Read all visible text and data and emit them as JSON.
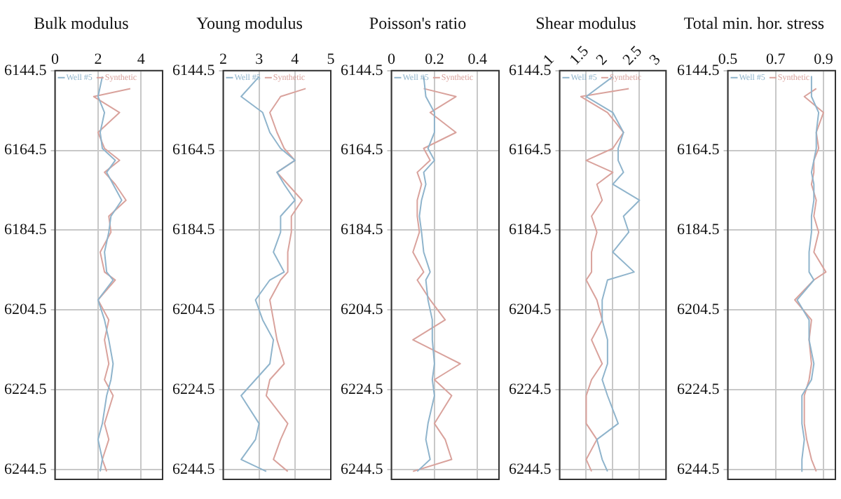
{
  "chart_data": [
    {
      "type": "line",
      "title": "Bulk modulus",
      "xlim": [
        0,
        5
      ],
      "xticks": [
        0,
        2,
        4
      ],
      "ylim": [
        6247,
        6144.5
      ],
      "yticks": [
        6144.5,
        6164.5,
        6184.5,
        6204.5,
        6224.5,
        6244.5
      ],
      "grid": true,
      "legend": "top",
      "series": [
        {
          "name": "Well #5",
          "color": "#8fb4cc",
          "x": [
            2.2,
            2.0,
            2.3,
            2.1,
            2.2,
            2.8,
            2.4,
            2.7,
            3.1,
            2.6,
            2.5,
            2.3,
            2.4,
            2.7,
            2.0,
            2.3,
            2.5,
            2.7,
            2.6,
            2.4,
            2.2,
            2.0,
            2.2,
            2.1
          ],
          "values": [
            6146,
            6151,
            6155,
            6160,
            6164,
            6167,
            6170,
            6173,
            6177,
            6181,
            6185,
            6190,
            6195,
            6197,
            6202,
            6207,
            6212,
            6218,
            6222,
            6226,
            6233,
            6237,
            6242,
            6245
          ]
        },
        {
          "name": "Synthetic",
          "color": "#d9a29c",
          "x": [
            3.5,
            1.8,
            3.0,
            2.0,
            2.3,
            3.0,
            2.3,
            2.8,
            3.3,
            2.5,
            2.6,
            2.1,
            2.3,
            2.8,
            2.0,
            2.5,
            2.3,
            2.5,
            2.3,
            2.7,
            2.3,
            2.5,
            2.2,
            2.4
          ],
          "values": [
            6149,
            6151,
            6155,
            6160,
            6164,
            6167,
            6170,
            6173,
            6177,
            6181,
            6185,
            6190,
            6195,
            6197,
            6202,
            6207,
            6212,
            6218,
            6222,
            6226,
            6233,
            6237,
            6242,
            6245
          ]
        }
      ]
    },
    {
      "type": "line",
      "title": "Young modulus",
      "xlim": [
        2,
        5
      ],
      "xticks": [
        2,
        3,
        4,
        5
      ],
      "ylim": [
        6247,
        6144.5
      ],
      "yticks": [
        6144.5,
        6164.5,
        6184.5,
        6204.5,
        6224.5,
        6244.5
      ],
      "grid": true,
      "legend": "top",
      "series": [
        {
          "name": "Well #5",
          "color": "#8fb4cc",
          "x": [
            3.0,
            2.5,
            3.1,
            3.3,
            3.6,
            4.0,
            3.5,
            3.7,
            4.0,
            3.6,
            3.6,
            3.4,
            3.7,
            3.3,
            2.9,
            3.1,
            3.4,
            3.3,
            2.9,
            2.5,
            3.0,
            2.9,
            2.5,
            3.2
          ],
          "values": [
            6146,
            6151,
            6155,
            6160,
            6164,
            6167,
            6170,
            6173,
            6177,
            6181,
            6185,
            6190,
            6195,
            6197,
            6202,
            6207,
            6212,
            6218,
            6222,
            6226,
            6233,
            6237,
            6242,
            6245
          ]
        },
        {
          "name": "Synthetic",
          "color": "#d9a29c",
          "x": [
            4.3,
            3.6,
            3.3,
            3.5,
            3.7,
            4.0,
            3.5,
            3.8,
            4.2,
            3.9,
            3.9,
            3.8,
            3.8,
            3.6,
            3.3,
            3.4,
            3.5,
            3.7,
            3.3,
            3.2,
            3.8,
            3.6,
            3.4,
            3.8
          ],
          "values": [
            6149,
            6151,
            6155,
            6160,
            6164,
            6167,
            6170,
            6173,
            6177,
            6181,
            6185,
            6190,
            6195,
            6197,
            6202,
            6207,
            6212,
            6218,
            6222,
            6226,
            6233,
            6237,
            6242,
            6245
          ]
        }
      ]
    },
    {
      "type": "line",
      "title": "Poisson's ratio",
      "xlim": [
        0,
        0.5
      ],
      "xticks": [
        0,
        0.2,
        0.4
      ],
      "ylim": [
        6247,
        6144.5
      ],
      "yticks": [
        6144.5,
        6164.5,
        6184.5,
        6204.5,
        6224.5,
        6244.5
      ],
      "grid": true,
      "legend": "top",
      "series": [
        {
          "name": "Well #5",
          "color": "#8fb4cc",
          "x": [
            0.15,
            0.16,
            0.2,
            0.2,
            0.17,
            0.2,
            0.15,
            0.16,
            0.14,
            0.13,
            0.14,
            0.15,
            0.18,
            0.16,
            0.17,
            0.19,
            0.19,
            0.2,
            0.19,
            0.2,
            0.17,
            0.16,
            0.18,
            0.12
          ],
          "values": [
            6146,
            6151,
            6155,
            6160,
            6164,
            6167,
            6170,
            6173,
            6177,
            6181,
            6185,
            6190,
            6195,
            6197,
            6202,
            6207,
            6212,
            6218,
            6222,
            6226,
            6233,
            6237,
            6242,
            6245
          ]
        },
        {
          "name": "Synthetic",
          "color": "#d9a29c",
          "x": [
            0.15,
            0.3,
            0.18,
            0.3,
            0.15,
            0.18,
            0.12,
            0.14,
            0.12,
            0.12,
            0.13,
            0.1,
            0.15,
            0.12,
            0.18,
            0.25,
            0.1,
            0.32,
            0.2,
            0.28,
            0.2,
            0.25,
            0.28,
            0.1
          ],
          "values": [
            6149,
            6151,
            6155,
            6160,
            6164,
            6167,
            6170,
            6173,
            6177,
            6181,
            6185,
            6190,
            6195,
            6197,
            6202,
            6207,
            6212,
            6218,
            6222,
            6226,
            6233,
            6237,
            6242,
            6245
          ]
        }
      ]
    },
    {
      "type": "line",
      "title": "Shear modulus",
      "xlim": [
        1,
        3
      ],
      "xticks": [
        1,
        1.5,
        2,
        2.5,
        3
      ],
      "ylim": [
        6247,
        6144.5
      ],
      "yticks": [
        6144.5,
        6164.5,
        6184.5,
        6204.5,
        6224.5,
        6244.5
      ],
      "grid": true,
      "legend": "top",
      "series": [
        {
          "name": "Well #5",
          "color": "#8fb4cc",
          "x": [
            2.0,
            1.5,
            2.0,
            2.2,
            2.1,
            2.1,
            2.2,
            2.0,
            2.5,
            2.2,
            2.3,
            2.0,
            2.4,
            1.9,
            1.8,
            1.8,
            1.9,
            1.9,
            1.8,
            1.9,
            2.1,
            1.7,
            1.8,
            1.9
          ],
          "values": [
            6146,
            6151,
            6155,
            6160,
            6164,
            6167,
            6170,
            6173,
            6177,
            6181,
            6185,
            6190,
            6195,
            6197,
            6202,
            6207,
            6212,
            6218,
            6222,
            6226,
            6233,
            6237,
            6242,
            6245
          ]
        },
        {
          "name": "Synthetic",
          "color": "#d9a29c",
          "x": [
            2.3,
            1.4,
            1.9,
            2.2,
            2.0,
            1.5,
            2.0,
            1.7,
            1.8,
            1.6,
            1.7,
            1.6,
            1.6,
            1.5,
            1.7,
            1.8,
            1.6,
            1.8,
            1.6,
            1.5,
            1.5,
            1.7,
            1.5,
            1.6
          ],
          "values": [
            6149,
            6151,
            6155,
            6160,
            6164,
            6167,
            6170,
            6173,
            6177,
            6181,
            6185,
            6190,
            6195,
            6197,
            6202,
            6207,
            6212,
            6218,
            6222,
            6226,
            6233,
            6237,
            6242,
            6245
          ]
        }
      ]
    },
    {
      "type": "line",
      "title": "Total min. hor. stress",
      "xlim": [
        0.5,
        0.95
      ],
      "xticks": [
        0.5,
        0.7,
        0.9
      ],
      "ylim": [
        6247,
        6144.5
      ],
      "yticks": [
        6144.5,
        6164.5,
        6184.5,
        6204.5,
        6224.5,
        6244.5
      ],
      "grid": true,
      "legend": "top",
      "series": [
        {
          "name": "Well #5",
          "color": "#8fb4cc",
          "x": [
            0.85,
            0.85,
            0.88,
            0.87,
            0.87,
            0.86,
            0.85,
            0.86,
            0.86,
            0.85,
            0.85,
            0.84,
            0.84,
            0.86,
            0.79,
            0.84,
            0.84,
            0.86,
            0.85,
            0.81,
            0.81,
            0.82,
            0.81,
            0.81
          ],
          "values": [
            6146,
            6151,
            6155,
            6160,
            6164,
            6167,
            6170,
            6173,
            6177,
            6181,
            6185,
            6190,
            6195,
            6197,
            6202,
            6207,
            6212,
            6218,
            6222,
            6226,
            6233,
            6237,
            6242,
            6245
          ]
        },
        {
          "name": "Synthetic",
          "color": "#d9a29c",
          "x": [
            0.87,
            0.82,
            0.9,
            0.87,
            0.88,
            0.86,
            0.86,
            0.85,
            0.87,
            0.86,
            0.88,
            0.86,
            0.91,
            0.86,
            0.78,
            0.85,
            0.84,
            0.85,
            0.84,
            0.82,
            0.82,
            0.83,
            0.85,
            0.87
          ],
          "values": [
            6149,
            6151,
            6155,
            6160,
            6164,
            6167,
            6170,
            6173,
            6177,
            6181,
            6185,
            6190,
            6195,
            6197,
            6202,
            6207,
            6212,
            6218,
            6222,
            6226,
            6233,
            6237,
            6242,
            6245
          ]
        }
      ]
    }
  ]
}
